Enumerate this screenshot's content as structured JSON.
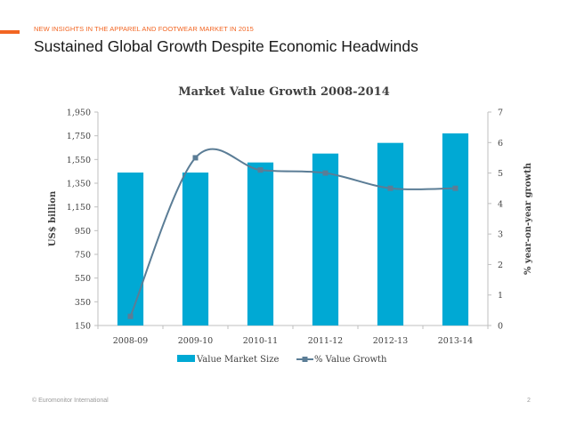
{
  "header": {
    "eyebrow": "NEW INSIGHTS IN THE APPAREL AND FOOTWEAR MARKET IN 2015",
    "title": "Sustained Global Growth Despite Economic Headwinds"
  },
  "footer": {
    "source": "© Euromonitor International",
    "page_number": "2"
  },
  "colors": {
    "accent": "#f26522",
    "bar": "#00a9d4",
    "line": "#5b7d96",
    "axis": "#bfbfbf",
    "text": "#404040"
  },
  "chart_data": {
    "type": "bar",
    "title": "Market Value Growth 2008-2014",
    "categories": [
      "2008-09",
      "2009-10",
      "2010-11",
      "2011-12",
      "2012-13",
      "2013-14"
    ],
    "series": [
      {
        "name": "Value Market Size",
        "type": "bar",
        "axis": "left",
        "values": [
          1440,
          1440,
          1525,
          1600,
          1690,
          1770
        ]
      },
      {
        "name": "% Value Growth",
        "type": "line",
        "axis": "right",
        "values": [
          0.3,
          5.5,
          5.1,
          5.0,
          4.5,
          4.5
        ]
      }
    ],
    "ylabel": "US$ billion",
    "y2label": "% year-on-year growth",
    "ylim": [
      150,
      1950
    ],
    "y2lim": [
      0,
      7
    ],
    "yticks": [
      "150",
      "350",
      "550",
      "750",
      "950",
      "1,150",
      "1,350",
      "1,550",
      "1,750",
      "1,950"
    ],
    "y2ticks": [
      "0",
      "1",
      "2",
      "3",
      "4",
      "5",
      "6",
      "7"
    ],
    "legend": "bottom-center",
    "grid": false
  }
}
